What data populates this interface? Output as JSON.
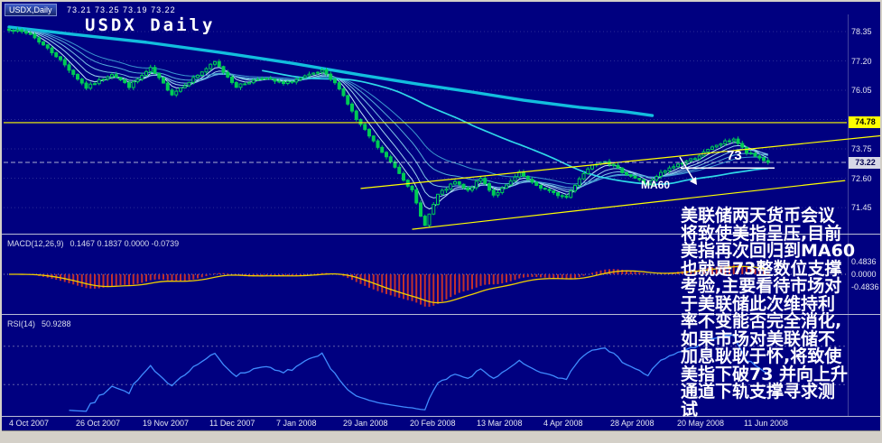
{
  "header": {
    "tab": "USDX,Daily",
    "ohlc": "73.21 73.25 73.19 73.22",
    "watermark": "USDX Daily"
  },
  "panes": {
    "macd": {
      "name": "MACD(12,26,9)",
      "values": "0.1467 0.1837 0.0000 -0.0739"
    },
    "rsi": {
      "name": "RSI(14)",
      "value": "50.9288"
    }
  },
  "annotations": {
    "note": "美联储两天货币会议\n将致使美指呈压,目前\n美指再次回归到MA60\n也就是73整数位支撑\n考验,主要看待市场对\n于美联储此次维持利\n率不变能否完全消化,\n如果市场对美联储不\n加息耿耿于怀,将致使\n美指下破73 并向上升\n通道下轨支撑寻求测\n试",
    "level": "73",
    "ma60": "MA60"
  },
  "colors": {
    "background": "#000080",
    "candle": "#00cc55",
    "ribbon": [
      "#c2e9f9",
      "#9ed6ef",
      "#79c2e5",
      "#55aedb",
      "#3a97cf"
    ],
    "ma60": "#2fd8e8",
    "long_ma": "#12bede",
    "trend": "#ffff00",
    "macd_bar": "#c03030",
    "macd_signal": "#f0d000",
    "rsi": "#3f8cff",
    "text": "#ffffff",
    "frame": "#d4d0c8"
  },
  "chart_data": [
    {
      "type": "candlestick",
      "title": "USDX Daily",
      "symbol": "USDX",
      "timeframe": "Daily",
      "current": {
        "open": 73.21,
        "high": 73.25,
        "low": 73.19,
        "close": 73.22
      },
      "ylim": [
        70.5,
        79.2
      ],
      "n_bars": 178,
      "x_labels": [
        "4 Oct 2007",
        "26 Oct 2007",
        "19 Nov 2007",
        "11 Dec 2007",
        "7 Jan 2008",
        "29 Jan 2008",
        "20 Feb 2008",
        "13 Mar 2008",
        "4 Apr 2008",
        "28 Apr 2008",
        "20 May 2008",
        "11 Jun 2008"
      ],
      "y_labels": [
        "78.35",
        "77.20",
        "76.05",
        "74.90",
        "73.75",
        "72.60",
        "71.45"
      ],
      "levels": [
        {
          "value": 74.78,
          "style": "yellow-box"
        },
        {
          "value": 73.22,
          "style": "price-box"
        }
      ],
      "price_anchors": [
        [
          0,
          78.45
        ],
        [
          5,
          78.25
        ],
        [
          11,
          77.4
        ],
        [
          18,
          76.15
        ],
        [
          24,
          76.7
        ],
        [
          28,
          76.2
        ],
        [
          33,
          76.9
        ],
        [
          38,
          75.9
        ],
        [
          48,
          77.15
        ],
        [
          53,
          76.2
        ],
        [
          59,
          76.55
        ],
        [
          64,
          76.3
        ],
        [
          73,
          76.8
        ],
        [
          77,
          76.15
        ],
        [
          81,
          74.9
        ],
        [
          87,
          73.6
        ],
        [
          90,
          73.05
        ],
        [
          94,
          72.1
        ],
        [
          96,
          71.1
        ],
        [
          97,
          70.8
        ],
        [
          100,
          71.95
        ],
        [
          104,
          72.45
        ],
        [
          107,
          72.1
        ],
        [
          110,
          72.6
        ],
        [
          113,
          71.95
        ],
        [
          116,
          72.3
        ],
        [
          119,
          72.8
        ],
        [
          122,
          72.4
        ],
        [
          127,
          72.0
        ],
        [
          130,
          71.85
        ],
        [
          133,
          72.6
        ],
        [
          136,
          73.15
        ],
        [
          139,
          73.3
        ],
        [
          142,
          72.95
        ],
        [
          146,
          72.6
        ],
        [
          149,
          72.35
        ],
        [
          152,
          72.8
        ],
        [
          156,
          73.15
        ],
        [
          160,
          73.4
        ],
        [
          165,
          73.9
        ],
        [
          169,
          74.15
        ],
        [
          172,
          73.6
        ],
        [
          175,
          73.4
        ],
        [
          177,
          73.22
        ]
      ],
      "ma_ribbon_periods": [
        5,
        9,
        14,
        21,
        30
      ],
      "ma60_period": 60,
      "long_ma_anchors": [
        [
          0,
          78.53
        ],
        [
          15,
          78.24
        ],
        [
          32,
          77.93
        ],
        [
          49,
          77.54
        ],
        [
          66,
          77.11
        ],
        [
          82,
          76.65
        ],
        [
          95,
          76.3
        ],
        [
          108,
          75.98
        ],
        [
          120,
          75.66
        ],
        [
          133,
          75.38
        ],
        [
          144,
          75.2
        ],
        [
          150,
          75.06
        ]
      ],
      "trendlines": [
        {
          "i1": 82,
          "p1": 72.2,
          "i2": 204,
          "p2": 74.28
        },
        {
          "i1": 94,
          "p1": 70.6,
          "i2": 195,
          "p2": 72.51
        }
      ],
      "support_level": 73.0
    },
    {
      "type": "bar",
      "label": "MACD(12,26,9)",
      "values": "0.1467 0.1837 0.0000 -0.0739",
      "params": {
        "fast": 12,
        "slow": 26,
        "signal": 9
      },
      "y_axis": [
        "0.4836",
        "0.0000",
        "-0.4836"
      ]
    },
    {
      "type": "line",
      "label": "RSI(14)",
      "value": "50.9288",
      "period": 14,
      "levels": [
        70,
        30
      ]
    }
  ]
}
